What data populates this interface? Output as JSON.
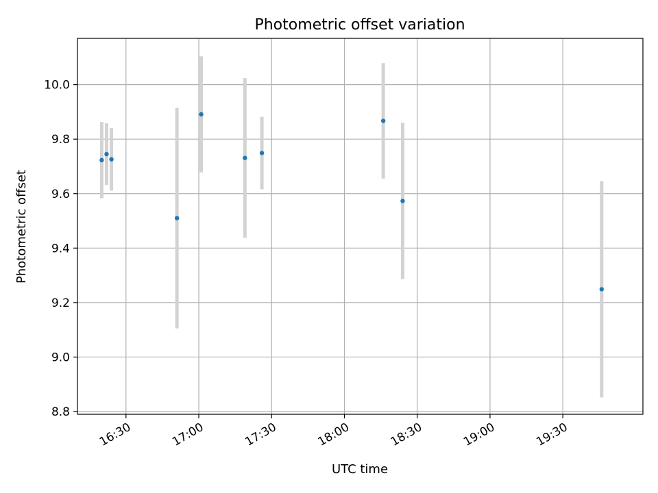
{
  "chart_data": {
    "type": "scatter",
    "title": "Photometric offset variation",
    "xlabel": "UTC time",
    "ylabel": "Photometric offset",
    "xlim": [
      "16:10",
      "20:03"
    ],
    "ylim": [
      8.79,
      10.17
    ],
    "x_ticks": [
      "16:30",
      "17:00",
      "17:30",
      "18:00",
      "18:30",
      "19:00",
      "19:30"
    ],
    "y_ticks": [
      8.8,
      9.0,
      9.2,
      9.4,
      9.6,
      9.8,
      10.0
    ],
    "y_tick_labels": [
      "8.8",
      "9.0",
      "9.2",
      "9.4",
      "9.6",
      "9.8",
      "10.0"
    ],
    "grid": true,
    "series": [
      {
        "points": [
          {
            "time": "16:20",
            "value": 9.723,
            "error": 0.14
          },
          {
            "time": "16:22",
            "value": 9.745,
            "error": 0.113
          },
          {
            "time": "16:24",
            "value": 9.726,
            "error": 0.115
          },
          {
            "time": "16:51",
            "value": 9.51,
            "error": 0.405
          },
          {
            "time": "17:01",
            "value": 9.891,
            "error": 0.213
          },
          {
            "time": "17:19",
            "value": 9.731,
            "error": 0.293
          },
          {
            "time": "17:26",
            "value": 9.749,
            "error": 0.133
          },
          {
            "time": "18:16",
            "value": 9.867,
            "error": 0.212
          },
          {
            "time": "18:24",
            "value": 9.573,
            "error": 0.287
          },
          {
            "time": "19:46",
            "value": 9.249,
            "error": 0.397
          }
        ]
      }
    ],
    "colors": {
      "marker": "#1f77b4",
      "errorbar": "#d3d3d3",
      "grid": "#b0b0b0",
      "axes": "#000000"
    }
  }
}
